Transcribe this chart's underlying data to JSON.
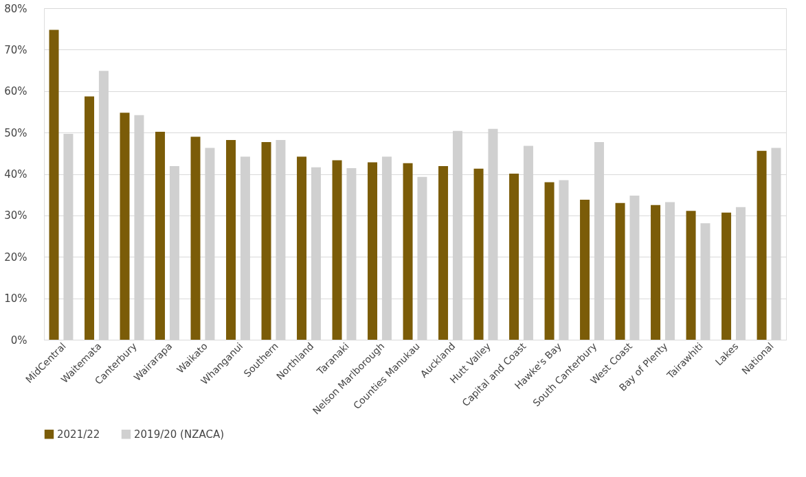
{
  "chart_data": {
    "type": "bar",
    "categories": [
      "MidCentral",
      "Waitemata",
      "Canterbury",
      "Wairarapa",
      "Waikato",
      "Whanganui",
      "Southern",
      "Northland",
      "Taranaki",
      "Nelson Marlborough",
      "Counties Manukau",
      "Auckland",
      "Hutt Valley",
      "Capital and Coast",
      "Hawke's Bay",
      "South Canterbury",
      "West Coast",
      "Bay of Plenty",
      "Tairawhiti",
      "Lakes",
      "National"
    ],
    "series": [
      {
        "name": "2021/22",
        "color": "#7b5c08",
        "values": [
          74.8,
          58.7,
          54.8,
          50.2,
          49.0,
          48.2,
          47.7,
          44.2,
          43.3,
          42.8,
          42.6,
          41.9,
          41.3,
          40.1,
          38.0,
          33.8,
          33.0,
          32.5,
          31.1,
          30.7,
          45.6
        ]
      },
      {
        "name": "2019/20 (NZACA)",
        "color": "#d0d0d0",
        "values": [
          49.7,
          64.9,
          54.2,
          41.9,
          46.3,
          44.2,
          48.2,
          41.6,
          41.4,
          44.2,
          39.3,
          50.4,
          50.9,
          46.8,
          38.5,
          47.7,
          34.8,
          33.2,
          28.1,
          32.0,
          46.3
        ]
      }
    ],
    "ylim": [
      0,
      80
    ],
    "yticks": [
      {
        "value": 0,
        "label": "0%"
      },
      {
        "value": 10,
        "label": "10%"
      },
      {
        "value": 20,
        "label": "20%"
      },
      {
        "value": 30,
        "label": "30%"
      },
      {
        "value": 40,
        "label": "40%"
      },
      {
        "value": 50,
        "label": "50%"
      },
      {
        "value": 60,
        "label": "60%"
      },
      {
        "value": 70,
        "label": "70%"
      },
      {
        "value": 80,
        "label": "80%"
      }
    ],
    "grid": "y",
    "legend": "bottom"
  }
}
